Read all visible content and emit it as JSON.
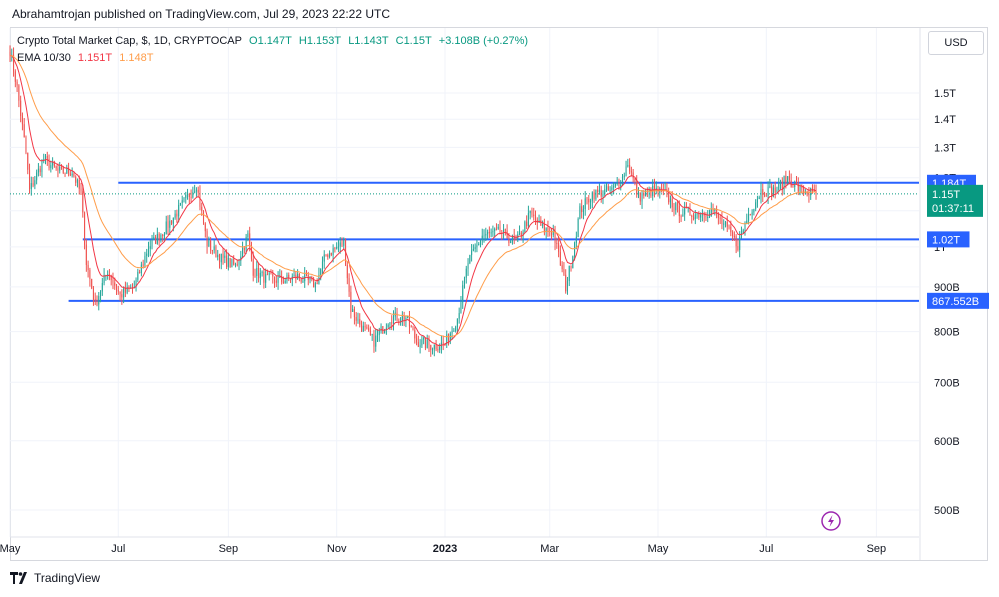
{
  "publish_line": "Abrahamtrojan published on TradingView.com, Jul 29, 2023 22:22 UTC",
  "legend": {
    "title": "Crypto Total Market Cap, $, 1D, CRYPTOCAP",
    "open": "O1.147T",
    "high": "H1.153T",
    "low": "L1.143T",
    "close": "C1.15T",
    "change": "+3.108B (+0.27%)",
    "ema_label": "EMA 10/30",
    "ema10": "1.151T",
    "ema30": "1.148T"
  },
  "currency_button": "USD",
  "footer_brand": "TradingView",
  "colors": {
    "up": "#26a69a",
    "down": "#ef5350",
    "ema_fast": "#f23645",
    "ema_slow": "#ff9d4a",
    "level": "#2962ff",
    "price_tag": "#089981",
    "accent": "#9c27b0"
  },
  "chart_data": {
    "type": "candlestick",
    "y_scale": "log",
    "x_range": [
      "2022-05-01",
      "2023-09-25"
    ],
    "y_range": [
      460,
      1700
    ],
    "x_tick_labels": [
      "May",
      "Jul",
      "Sep",
      "Nov",
      "2023",
      "Mar",
      "May",
      "Jul",
      "Sep"
    ],
    "y_tick_labels": [
      "1.5T",
      "1.4T",
      "1.3T",
      "1.2T",
      "1.1T",
      "1T",
      "900B",
      "800B",
      "700B",
      "600B",
      "500B"
    ],
    "series": [
      {
        "name": "Crypto Total Market Cap",
        "type": "candlestick",
        "unit": "billion USD",
        "approx_close_path": [
          [
            "2022-05-01",
            1680
          ],
          [
            "2022-05-05",
            1520
          ],
          [
            "2022-05-10",
            1280
          ],
          [
            "2022-05-12",
            1160
          ],
          [
            "2022-05-20",
            1260
          ],
          [
            "2022-05-28",
            1220
          ],
          [
            "2022-06-05",
            1220
          ],
          [
            "2022-06-10",
            1150
          ],
          [
            "2022-06-13",
            960
          ],
          [
            "2022-06-18",
            860
          ],
          [
            "2022-06-25",
            940
          ],
          [
            "2022-07-02",
            880
          ],
          [
            "2022-07-10",
            900
          ],
          [
            "2022-07-18",
            1000
          ],
          [
            "2022-07-26",
            1040
          ],
          [
            "2022-08-05",
            1110
          ],
          [
            "2022-08-14",
            1180
          ],
          [
            "2022-08-20",
            1010
          ],
          [
            "2022-08-28",
            970
          ],
          [
            "2022-09-05",
            950
          ],
          [
            "2022-09-12",
            1030
          ],
          [
            "2022-09-15",
            940
          ],
          [
            "2022-09-22",
            920
          ],
          [
            "2022-10-01",
            915
          ],
          [
            "2022-10-10",
            925
          ],
          [
            "2022-10-20",
            905
          ],
          [
            "2022-10-26",
            980
          ],
          [
            "2022-11-05",
            1010
          ],
          [
            "2022-11-09",
            850
          ],
          [
            "2022-11-15",
            810
          ],
          [
            "2022-11-22",
            780
          ],
          [
            "2022-12-01",
            830
          ],
          [
            "2022-12-10",
            830
          ],
          [
            "2022-12-16",
            780
          ],
          [
            "2022-12-25",
            770
          ],
          [
            "2023-01-01",
            775
          ],
          [
            "2023-01-08",
            830
          ],
          [
            "2023-01-14",
            960
          ],
          [
            "2023-01-22",
            1030
          ],
          [
            "2023-02-01",
            1040
          ],
          [
            "2023-02-10",
            1010
          ],
          [
            "2023-02-18",
            1090
          ],
          [
            "2023-02-25",
            1050
          ],
          [
            "2023-03-03",
            1040
          ],
          [
            "2023-03-10",
            900
          ],
          [
            "2023-03-13",
            960
          ],
          [
            "2023-03-18",
            1100
          ],
          [
            "2023-03-25",
            1150
          ],
          [
            "2023-04-05",
            1160
          ],
          [
            "2023-04-11",
            1200
          ],
          [
            "2023-04-14",
            1250
          ],
          [
            "2023-04-20",
            1140
          ],
          [
            "2023-04-28",
            1160
          ],
          [
            "2023-05-05",
            1150
          ],
          [
            "2023-05-12",
            1100
          ],
          [
            "2023-05-22",
            1090
          ],
          [
            "2023-06-01",
            1100
          ],
          [
            "2023-06-10",
            1040
          ],
          [
            "2023-06-15",
            1005
          ],
          [
            "2023-06-21",
            1090
          ],
          [
            "2023-06-28",
            1160
          ],
          [
            "2023-07-06",
            1160
          ],
          [
            "2023-07-13",
            1200
          ],
          [
            "2023-07-20",
            1160
          ],
          [
            "2023-07-29",
            1150
          ]
        ]
      },
      {
        "name": "EMA 10",
        "type": "line",
        "color": "#f23645"
      },
      {
        "name": "EMA 30",
        "type": "line",
        "color": "#ff9d4a"
      }
    ],
    "horizontal_levels": [
      {
        "value": 1184,
        "label": "1.184T",
        "from": "2022-07-01"
      },
      {
        "value": 1020,
        "label": "1.02T",
        "from": "2022-06-11"
      },
      {
        "value": 867.552,
        "label": "867.552B",
        "from": "2022-06-03"
      }
    ],
    "last_price": {
      "value": 1150,
      "label": "1.15T",
      "countdown": "01:37:11"
    }
  }
}
